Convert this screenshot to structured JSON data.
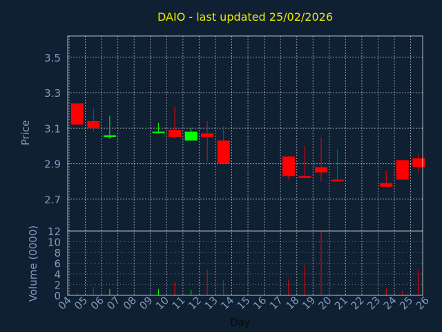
{
  "chart_data": {
    "type": "candlestick",
    "title": "DAIO - last updated 25/02/2026",
    "price_panel": {
      "ylabel": "Price",
      "ylim": [
        2.52,
        3.62
      ],
      "yticks": [
        "3.5",
        "3.3",
        "3.1",
        "2.9",
        "2.7"
      ],
      "ytick_values": [
        3.5,
        3.3,
        3.1,
        2.9,
        2.7
      ],
      "grid": true
    },
    "volume_panel": {
      "ylabel": "Volume (0000)",
      "ylim": [
        0,
        12
      ],
      "yticks": [
        "12",
        "10",
        "8",
        "6",
        "4",
        "2",
        "0"
      ],
      "ytick_values": [
        12,
        10,
        8,
        6,
        4,
        2,
        0
      ]
    },
    "xlabel": "Day",
    "x_ticks": [
      "04",
      "05",
      "06",
      "07",
      "08",
      "09",
      "10",
      "11",
      "12",
      "13",
      "14",
      "15",
      "16",
      "17",
      "18",
      "19",
      "20",
      "21",
      "22",
      "23",
      "24",
      "25",
      "26"
    ],
    "candles": [
      {
        "day": "04",
        "open": 3.24,
        "close": 3.12,
        "high": 3.24,
        "low": 3.12,
        "volume": 0.5
      },
      {
        "day": "05",
        "open": 3.14,
        "close": 3.1,
        "high": 3.21,
        "low": 3.08,
        "volume": 1.5
      },
      {
        "day": "06",
        "open": 3.05,
        "close": 3.06,
        "high": 3.17,
        "low": 3.04,
        "volume": 1.2
      },
      {
        "day": "09",
        "open": 3.08,
        "close": 3.08,
        "high": 3.13,
        "low": 3.07,
        "volume": 1.2
      },
      {
        "day": "10",
        "open": 3.09,
        "close": 3.05,
        "high": 3.22,
        "low": 3.04,
        "volume": 2.5
      },
      {
        "day": "11",
        "open": 3.03,
        "close": 3.08,
        "high": 3.1,
        "low": 3.03,
        "volume": 1.0
      },
      {
        "day": "12",
        "open": 3.07,
        "close": 3.05,
        "high": 3.14,
        "low": 2.91,
        "volume": 4.8
      },
      {
        "day": "13",
        "open": 3.03,
        "close": 2.9,
        "high": 3.11,
        "low": 2.9,
        "volume": 2.8
      },
      {
        "day": "17",
        "open": 2.94,
        "close": 2.83,
        "high": 2.94,
        "low": 2.81,
        "volume": 3.0
      },
      {
        "day": "18",
        "open": 2.83,
        "close": 2.82,
        "high": 3.0,
        "low": 2.82,
        "volume": 5.7
      },
      {
        "day": "19",
        "open": 2.88,
        "close": 2.85,
        "high": 3.05,
        "low": 2.8,
        "volume": 12.0
      },
      {
        "day": "20",
        "open": 2.81,
        "close": 2.8,
        "high": 2.98,
        "low": 2.8,
        "volume": 0.2
      },
      {
        "day": "23",
        "open": 2.79,
        "close": 2.77,
        "high": 2.86,
        "low": 2.77,
        "volume": 1.3
      },
      {
        "day": "24",
        "open": 2.92,
        "close": 2.81,
        "high": 2.92,
        "low": 2.81,
        "volume": 0.8
      },
      {
        "day": "25",
        "open": 2.93,
        "close": 2.88,
        "high": 2.96,
        "low": 2.85,
        "volume": 4.8
      }
    ]
  },
  "colors": {
    "background": "#0f2033",
    "title": "#e8e800",
    "axis_text": "#7f9bbf",
    "grid": "#ffffff",
    "down": "#ff0000",
    "up": "#00ff00"
  }
}
